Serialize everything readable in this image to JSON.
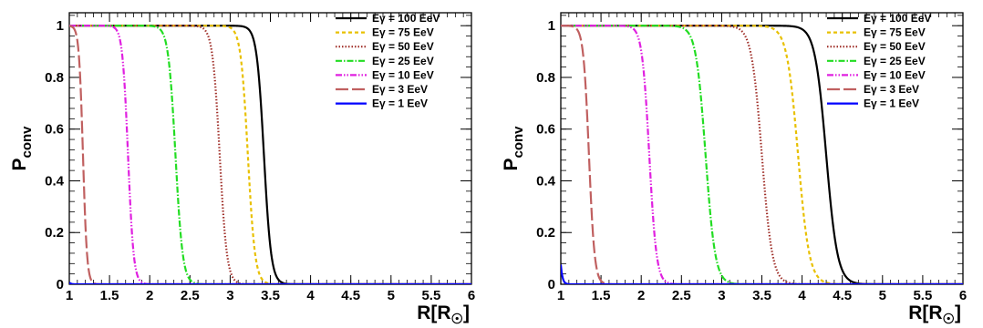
{
  "chart_data": [
    {
      "type": "line",
      "title": "",
      "xlabel": "R[R_☉]",
      "ylabel": "P_conv",
      "xlim": [
        1,
        6
      ],
      "ylim": [
        0,
        1.05
      ],
      "x_ticks": [
        "1",
        "1.5",
        "2",
        "2.5",
        "3",
        "3.5",
        "4",
        "4.5",
        "5",
        "5.5",
        "6"
      ],
      "y_ticks": [
        "0",
        "0.2",
        "0.4",
        "0.6",
        "0.8",
        "1"
      ],
      "grid": false,
      "legend_position": "top-right",
      "series": [
        {
          "name": "Eγ = 100 EeV",
          "color": "#000000",
          "dash": "solid",
          "midpoint": 3.42,
          "width": 0.045
        },
        {
          "name": "Eγ = 75 EeV",
          "color": "#e8c000",
          "dash": "4,3",
          "midpoint": 3.22,
          "width": 0.045
        },
        {
          "name": "Eγ = 50 EeV",
          "color": "#a0302a",
          "dash": "1.5,2",
          "midpoint": 2.87,
          "width": 0.045
        },
        {
          "name": "Eγ = 25 EeV",
          "color": "#22dd22",
          "dash": "7,2,1.5,2",
          "midpoint": 2.32,
          "width": 0.045
        },
        {
          "name": "Eγ = 10 EeV",
          "color": "#e020e0",
          "dash": "7,2,1.5,2,1.5,2",
          "midpoint": 1.73,
          "width": 0.035
        },
        {
          "name": "Eγ = 3 EeV",
          "color": "#c06060",
          "dash": "14,4",
          "midpoint": 1.17,
          "width": 0.025
        },
        {
          "name": "Eγ = 1 EeV",
          "color": "#0000ff",
          "dash": "solid",
          "midpoint": 0.9,
          "width": 0.02
        }
      ]
    },
    {
      "type": "line",
      "title": "",
      "xlabel": "R[R_☉]",
      "ylabel": "P_conv",
      "xlim": [
        1,
        6
      ],
      "ylim": [
        0,
        1.05
      ],
      "x_ticks": [
        "1",
        "1.5",
        "2",
        "2.5",
        "3",
        "3.5",
        "4",
        "4.5",
        "5",
        "5.5",
        "6"
      ],
      "y_ticks": [
        "0",
        "0.2",
        "0.4",
        "0.6",
        "0.8",
        "1"
      ],
      "grid": false,
      "legend_position": "top-right",
      "series": [
        {
          "name": "Eγ = 100 EeV",
          "color": "#000000",
          "dash": "solid",
          "midpoint": 4.3,
          "width": 0.07
        },
        {
          "name": "Eγ = 75 EeV",
          "color": "#e8c000",
          "dash": "4,3",
          "midpoint": 3.95,
          "width": 0.07
        },
        {
          "name": "Eγ = 50 EeV",
          "color": "#a0302a",
          "dash": "1.5,2",
          "midpoint": 3.5,
          "width": 0.065
        },
        {
          "name": "Eγ = 25 EeV",
          "color": "#22dd22",
          "dash": "7,2,1.5,2",
          "midpoint": 2.8,
          "width": 0.06
        },
        {
          "name": "Eγ = 10 EeV",
          "color": "#e020e0",
          "dash": "7,2,1.5,2,1.5,2",
          "midpoint": 2.1,
          "width": 0.045
        },
        {
          "name": "Eγ = 3 EeV",
          "color": "#c06060",
          "dash": "14,4",
          "midpoint": 1.35,
          "width": 0.035
        },
        {
          "name": "Eγ = 1 EeV",
          "color": "#0000ff",
          "dash": "solid",
          "midpoint": 0.95,
          "width": 0.02
        }
      ]
    }
  ]
}
